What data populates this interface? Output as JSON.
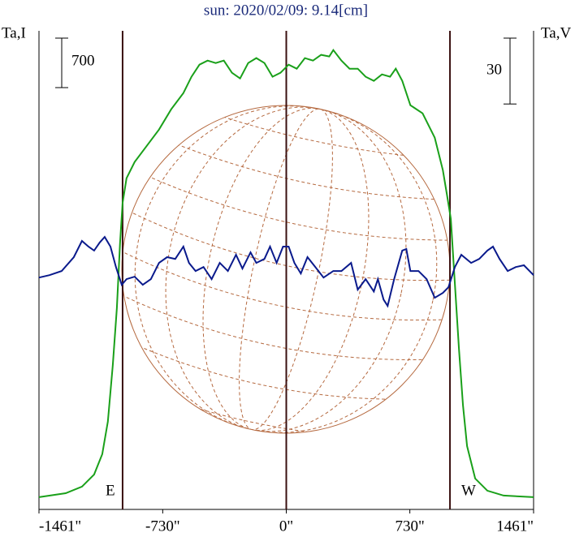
{
  "chart_data": {
    "type": "line",
    "title": "sun: 2020/02/09: 9.14[cm]",
    "left_axis_label": "Ta,I",
    "right_axis_label": "Ta,V",
    "i_scale": 700,
    "v_scale": 30,
    "east_label": "E",
    "west_label": "W",
    "vlines": [
      -967,
      0,
      967
    ],
    "xlim": [
      -1461,
      1461
    ],
    "xticks": [
      {
        "value": -1461,
        "label": "-1461\""
      },
      {
        "value": -730,
        "label": "-730\""
      },
      {
        "value": 0,
        "label": "0\""
      },
      {
        "value": 730,
        "label": "730\""
      },
      {
        "value": 1461,
        "label": "1461\""
      }
    ],
    "ylim": [
      -150,
      6620
    ],
    "y2lim": [
      -106,
      112
    ],
    "series": [
      {
        "name": "Ta,I",
        "color": "#1aa01a",
        "x": [
          -1461,
          -1303,
          -1207,
          -1135,
          -1087,
          -1054,
          -1025,
          -1001,
          -982,
          -967,
          -944,
          -896,
          -824,
          -752,
          -680,
          -608,
          -560,
          -513,
          -465,
          -417,
          -369,
          -321,
          -273,
          -225,
          -177,
          -129,
          -81,
          -34,
          14,
          62,
          110,
          158,
          206,
          254,
          278,
          326,
          374,
          422,
          469,
          517,
          565,
          613,
          647,
          685,
          733,
          805,
          877,
          925,
          949,
          972,
          996,
          1020,
          1044,
          1068,
          1116,
          1188,
          1284,
          1380,
          1461
        ],
        "values": [
          23,
          80,
          172,
          344,
          631,
          1091,
          1894,
          2698,
          3616,
          4190,
          4535,
          4764,
          4994,
          5223,
          5510,
          5740,
          5970,
          6142,
          6199,
          6165,
          6199,
          6027,
          5947,
          6165,
          6234,
          6165,
          5970,
          6027,
          6142,
          6084,
          6234,
          6199,
          6280,
          6257,
          6348,
          6199,
          6084,
          6084,
          5970,
          5912,
          6004,
          5970,
          6084,
          5912,
          5568,
          5453,
          5109,
          4649,
          4305,
          3961,
          3042,
          2124,
          1320,
          746,
          287,
          115,
          46,
          34,
          23
        ]
      },
      {
        "name": "Ta,V",
        "color": "#0a1a8c",
        "axis": "y2",
        "x": [
          -1461,
          -1399,
          -1327,
          -1255,
          -1207,
          -1169,
          -1135,
          -1102,
          -1073,
          -1039,
          -1006,
          -972,
          -944,
          -896,
          -848,
          -800,
          -752,
          -704,
          -656,
          -608,
          -575,
          -536,
          -489,
          -441,
          -393,
          -345,
          -297,
          -259,
          -211,
          -177,
          -129,
          -96,
          -57,
          -19,
          14,
          48,
          86,
          125,
          172,
          220,
          278,
          326,
          383,
          422,
          469,
          517,
          541,
          575,
          599,
          637,
          685,
          709,
          733,
          781,
          829,
          877,
          925,
          958,
          996,
          1034,
          1092,
          1140,
          1188,
          1221,
          1260,
          1308,
          1356,
          1404,
          1461
        ],
        "values": [
          -0.4,
          0.7,
          2.6,
          8.9,
          16.3,
          13.7,
          11.9,
          15.6,
          18.1,
          13.7,
          4.4,
          -3.7,
          -1.1,
          0,
          -3.7,
          -1.1,
          6.3,
          8.9,
          8.1,
          13.7,
          6.3,
          2.6,
          4.4,
          -1.1,
          6.3,
          2.6,
          10,
          3.7,
          11.1,
          6.3,
          8.1,
          13.7,
          6.3,
          13.7,
          13.7,
          6.3,
          1.5,
          8.9,
          4.4,
          -0.4,
          2.6,
          2.6,
          6.3,
          -5.9,
          -1.1,
          -6.7,
          -1.1,
          -10.4,
          -13.3,
          -1.1,
          11.9,
          12.6,
          2.6,
          2.6,
          -1.1,
          -9.6,
          -7.4,
          -4.8,
          4.4,
          10,
          6.3,
          8.1,
          11.9,
          13.7,
          8.1,
          2.6,
          4.4,
          5.2,
          0.7
        ]
      }
    ]
  }
}
